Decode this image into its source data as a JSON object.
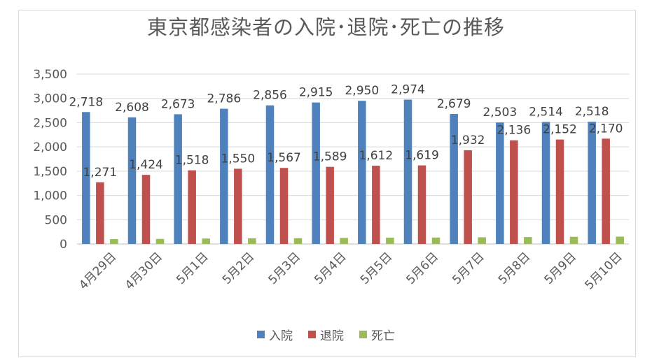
{
  "chart_data": {
    "type": "bar",
    "title": "東京都感染者の入院･退院･死亡の推移",
    "categories": [
      "4月29日",
      "4月30日",
      "5月1日",
      "5月2日",
      "5月3日",
      "5月4日",
      "5月5日",
      "5月6日",
      "5月7日",
      "5月8日",
      "5月9日",
      "5月10日"
    ],
    "series": [
      {
        "name": "入院",
        "color": "#4f81bd",
        "values": [
          2718,
          2608,
          2673,
          2786,
          2856,
          2915,
          2950,
          2974,
          2679,
          2503,
          2514,
          2518
        ],
        "labels": [
          "2,718",
          "2,608",
          "2,673",
          "2,786",
          "2,856",
          "2,915",
          "2,950",
          "2,974",
          "2,679",
          "2,503",
          "2,514",
          "2,518"
        ]
      },
      {
        "name": "退院",
        "color": "#c0504d",
        "values": [
          1271,
          1424,
          1518,
          1550,
          1567,
          1589,
          1612,
          1619,
          1932,
          2136,
          2152,
          2170
        ],
        "labels": [
          "1,271",
          "1,424",
          "1,518",
          "1,550",
          "1,567",
          "1,589",
          "1,612",
          "1,619",
          "1,932",
          "2,136",
          "2,152",
          "2,170"
        ]
      },
      {
        "name": "死亡",
        "color": "#9bbb59",
        "values": [
          100,
          104,
          112,
          117,
          119,
          125,
          130,
          133,
          138,
          143,
          148,
          151
        ]
      }
    ],
    "ylim": [
      0,
      3500
    ],
    "yticks": [
      0,
      500,
      1000,
      1500,
      2000,
      2500,
      3000,
      3500
    ],
    "ytick_labels": [
      "0",
      "500",
      "1,000",
      "1,500",
      "2,000",
      "2,500",
      "3,000",
      "3,500"
    ],
    "grid": true,
    "legend_position": "bottom"
  }
}
